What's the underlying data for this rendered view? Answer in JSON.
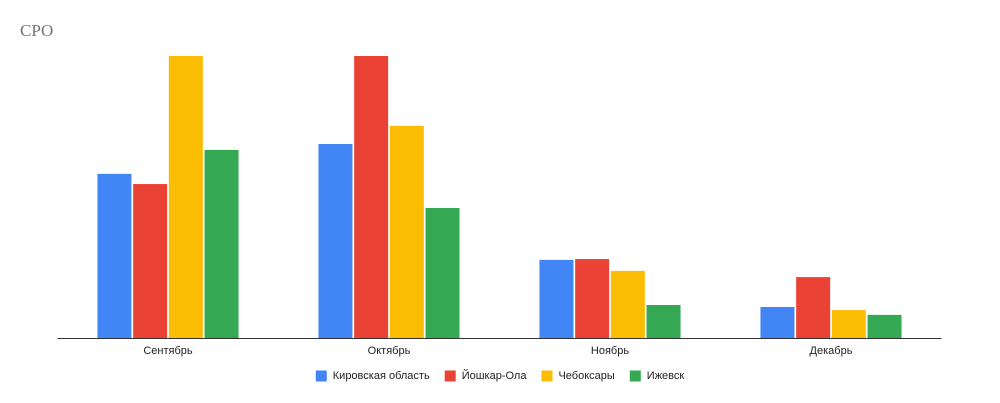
{
  "chart_data": {
    "type": "bar",
    "title": "СРО",
    "categories": [
      "Сентябрь",
      "Октябрь",
      "Ноябрь",
      "Декабрь"
    ],
    "series": [
      {
        "name": "Кировская область",
        "color": "#4285f4",
        "values": [
          58.2,
          68.8,
          27.7,
          11.0
        ]
      },
      {
        "name": "Йошкар-Ола",
        "color": "#ea4335",
        "values": [
          54.6,
          100,
          28.0,
          21.6
        ]
      },
      {
        "name": "Чебоксары",
        "color": "#fbbc04",
        "values": [
          100,
          75.2,
          23.8,
          9.9
        ]
      },
      {
        "name": "Ижевск",
        "color": "#34a853",
        "values": [
          66.7,
          46.1,
          11.7,
          8.2
        ]
      }
    ],
    "ylim": [
      0,
      100
    ],
    "legend": "bottom"
  }
}
